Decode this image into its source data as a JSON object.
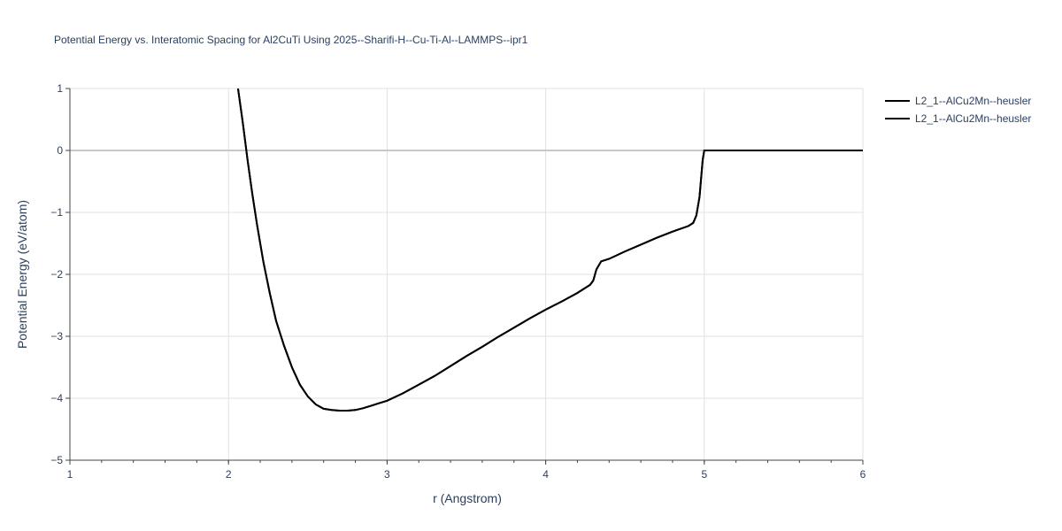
{
  "title": "Potential Energy vs. Interatomic Spacing for Al2CuTi Using 2025--Sharifi-H--Cu-Ti-Al--LAMMPS--ipr1",
  "chart_data": {
    "type": "line",
    "title": "Potential Energy vs. Interatomic Spacing for Al2CuTi Using 2025--Sharifi-H--Cu-Ti-Al--LAMMPS--ipr1",
    "xlabel": "r (Angstrom)",
    "ylabel": "Potential Energy (eV/atom)",
    "xlim": [
      1,
      6
    ],
    "ylim": [
      -5,
      1
    ],
    "x_ticks": [
      "1",
      "2",
      "3",
      "4",
      "5",
      "6"
    ],
    "y_ticks": [
      "1",
      "0",
      "−1",
      "−2",
      "−3",
      "−4",
      "−5"
    ],
    "grid": true,
    "legend_position": "top-right",
    "series_color": "#000000",
    "series": [
      {
        "name": "L2_1--AlCu2Mn--heusler",
        "x": [
          2.06,
          2.09,
          2.12,
          2.15,
          2.18,
          2.22,
          2.26,
          2.3,
          2.35,
          2.4,
          2.45,
          2.5,
          2.55,
          2.6,
          2.65,
          2.7,
          2.75,
          2.8,
          2.85,
          2.9,
          2.95,
          3.0,
          3.1,
          3.2,
          3.3,
          3.4,
          3.5,
          3.6,
          3.7,
          3.8,
          3.9,
          4.0,
          4.1,
          4.2,
          4.28,
          4.3,
          4.32,
          4.35,
          4.4,
          4.5,
          4.6,
          4.7,
          4.8,
          4.9,
          4.93,
          4.95,
          4.97,
          4.98,
          4.99,
          5.0,
          5.5,
          6.0
        ],
        "values": [
          1.0,
          0.45,
          -0.15,
          -0.7,
          -1.2,
          -1.8,
          -2.3,
          -2.75,
          -3.15,
          -3.5,
          -3.78,
          -3.97,
          -4.1,
          -4.17,
          -4.19,
          -4.2,
          -4.2,
          -4.19,
          -4.16,
          -4.12,
          -4.08,
          -4.04,
          -3.92,
          -3.78,
          -3.64,
          -3.48,
          -3.32,
          -3.17,
          -3.01,
          -2.86,
          -2.71,
          -2.57,
          -2.44,
          -2.3,
          -2.17,
          -2.1,
          -1.92,
          -1.79,
          -1.75,
          -1.63,
          -1.52,
          -1.41,
          -1.31,
          -1.22,
          -1.17,
          -1.05,
          -0.75,
          -0.45,
          -0.15,
          0.0,
          0.0,
          0.0
        ]
      },
      {
        "name": "L2_1--AlCu2Mn--heusler",
        "x": [
          2.06,
          2.09,
          2.12,
          2.15,
          2.18,
          2.22,
          2.26,
          2.3,
          2.35,
          2.4,
          2.45,
          2.5,
          2.55,
          2.6,
          2.65,
          2.7,
          2.75,
          2.8,
          2.85,
          2.9,
          2.95,
          3.0,
          3.1,
          3.2,
          3.3,
          3.4,
          3.5,
          3.6,
          3.7,
          3.8,
          3.9,
          4.0,
          4.1,
          4.2,
          4.28,
          4.3,
          4.32,
          4.35,
          4.4,
          4.5,
          4.6,
          4.7,
          4.8,
          4.9,
          4.93,
          4.95,
          4.97,
          4.98,
          4.99,
          5.0,
          5.5,
          6.0
        ],
        "values": [
          1.0,
          0.45,
          -0.15,
          -0.7,
          -1.2,
          -1.8,
          -2.3,
          -2.75,
          -3.15,
          -3.5,
          -3.78,
          -3.97,
          -4.1,
          -4.17,
          -4.19,
          -4.2,
          -4.2,
          -4.19,
          -4.16,
          -4.12,
          -4.08,
          -4.04,
          -3.92,
          -3.78,
          -3.64,
          -3.48,
          -3.32,
          -3.17,
          -3.01,
          -2.86,
          -2.71,
          -2.57,
          -2.44,
          -2.3,
          -2.17,
          -2.1,
          -1.92,
          -1.79,
          -1.75,
          -1.63,
          -1.52,
          -1.41,
          -1.31,
          -1.22,
          -1.17,
          -1.05,
          -0.75,
          -0.45,
          -0.15,
          0.0,
          0.0,
          0.0
        ]
      }
    ]
  }
}
